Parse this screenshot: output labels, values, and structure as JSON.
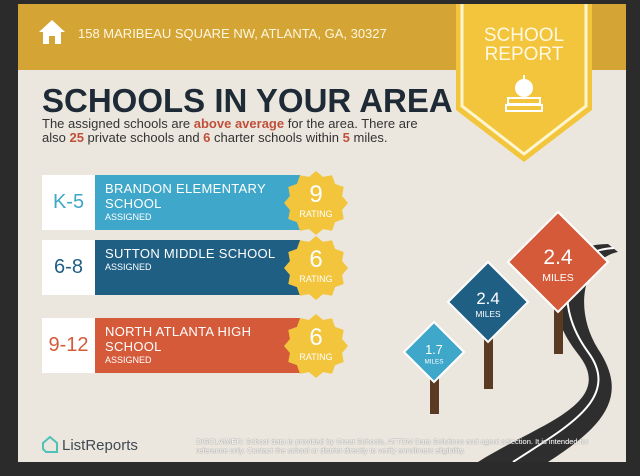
{
  "header": {
    "address": "158 MARIBEAU SQUARE NW, ATLANTA, GA, 30327",
    "badge_line1": "SCHOOL",
    "badge_line2": "REPORT"
  },
  "title": "SCHOOLS IN YOUR AREA",
  "summary": {
    "p1": "The assigned schools are ",
    "rating_phrase": "above average",
    "p2": " for the area. There are also ",
    "private_count": "25",
    "p3": " private schools and ",
    "charter_count": "6",
    "p4": " charter schools within ",
    "radius": "5",
    "p5": " miles."
  },
  "schools": [
    {
      "grade": "K-5",
      "name": "BRANDON ELEMENTARY SCHOOL",
      "status": "ASSIGNED",
      "rating": "9",
      "rating_label": "RATING",
      "color": "#3fa7c9",
      "grade_color": "#3fa7c9"
    },
    {
      "grade": "6-8",
      "name": "SUTTON MIDDLE SCHOOL",
      "status": "ASSIGNED",
      "rating": "6",
      "rating_label": "RATING",
      "color": "#1f5f84",
      "grade_color": "#1f5f84"
    },
    {
      "grade": "9-12",
      "name": "NORTH ATLANTA HIGH SCHOOL",
      "status": "ASSIGNED",
      "rating": "6",
      "rating_label": "RATING",
      "color": "#d55a3a",
      "grade_color": "#d55a3a"
    }
  ],
  "signs": [
    {
      "label": "1.7",
      "unit": "MILES"
    },
    {
      "label": "2.4",
      "unit": "MILES"
    },
    {
      "label": "2.4",
      "unit": "MILES"
    }
  ],
  "footer": {
    "logo": "ListReports",
    "disclaimer_label": "DISCLAIMER:",
    "disclaimer": " School data is provided by Great Schools, ATTOM Data Solutions and agent selection. It is intended for reference only. Contact the school or district directly to verify enrollment eligibility."
  },
  "colors": {
    "gold": "#d4a534",
    "badge": "#f2c53d",
    "accent": "#c0503a",
    "dark": "#1e2a36"
  }
}
